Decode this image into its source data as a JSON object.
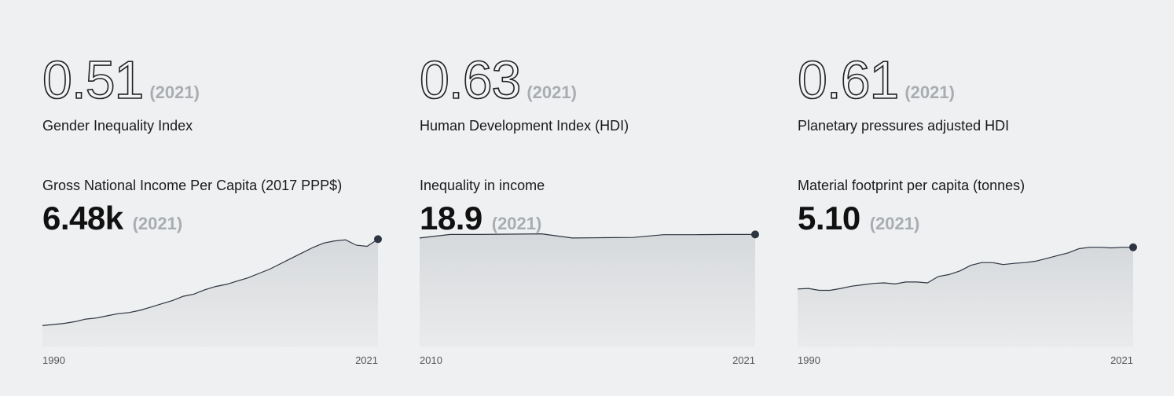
{
  "panels": [
    {
      "headline": {
        "value": "0.51",
        "year": "(2021)",
        "label": "Gender Inequality Index"
      },
      "metric": {
        "label": "Gross National Income Per Capita (2017 PPP$)",
        "value": "6.48k",
        "year": "(2021)"
      }
    },
    {
      "headline": {
        "value": "0.63",
        "year": "(2021)",
        "label": "Human Development Index (HDI)"
      },
      "metric": {
        "label": "Inequality in income",
        "value": "18.9",
        "year": "(2021)"
      }
    },
    {
      "headline": {
        "value": "0.61",
        "year": "(2021)",
        "label": "Planetary pressures adjusted HDI"
      },
      "metric": {
        "label": "Material footprint per capita (tonnes)",
        "value": "5.10",
        "year": "(2021)"
      }
    }
  ],
  "chart_data": [
    {
      "type": "area",
      "title": "Gross National Income Per Capita (2017 PPP$)",
      "x_tick_labels": [
        "1990",
        "2021"
      ],
      "x": [
        1990,
        1991,
        1992,
        1993,
        1994,
        1995,
        1996,
        1997,
        1998,
        1999,
        2000,
        2001,
        2002,
        2003,
        2004,
        2005,
        2006,
        2007,
        2008,
        2009,
        2010,
        2011,
        2012,
        2013,
        2014,
        2015,
        2016,
        2017,
        2018,
        2019,
        2020,
        2021
      ],
      "values": [
        2.5,
        2.55,
        2.6,
        2.68,
        2.8,
        2.85,
        2.95,
        3.05,
        3.1,
        3.2,
        3.35,
        3.5,
        3.65,
        3.85,
        3.95,
        4.15,
        4.3,
        4.4,
        4.55,
        4.7,
        4.9,
        5.1,
        5.35,
        5.6,
        5.85,
        6.1,
        6.3,
        6.4,
        6.45,
        6.2,
        6.15,
        6.48
      ],
      "ylim": [
        1.5,
        7.0
      ],
      "marker": "end-point",
      "color": "#2d3540"
    },
    {
      "type": "area",
      "title": "Inequality in income",
      "x_tick_labels": [
        "2010",
        "2021"
      ],
      "x": [
        2010,
        2011,
        2012,
        2013,
        2014,
        2015,
        2016,
        2017,
        2018,
        2019,
        2020,
        2021
      ],
      "values": [
        18.3,
        18.9,
        18.9,
        18.95,
        19.0,
        18.3,
        18.35,
        18.4,
        18.85,
        18.85,
        18.9,
        18.9
      ],
      "ylim": [
        0,
        20
      ],
      "marker": "end-point",
      "color": "#2d3540"
    },
    {
      "type": "area",
      "title": "Material footprint per capita (tonnes)",
      "x_tick_labels": [
        "1990",
        "2021"
      ],
      "x": [
        1990,
        1991,
        1992,
        1993,
        1994,
        1995,
        1996,
        1997,
        1998,
        1999,
        2000,
        2001,
        2002,
        2003,
        2004,
        2005,
        2006,
        2007,
        2008,
        2009,
        2010,
        2011,
        2012,
        2013,
        2014,
        2015,
        2016,
        2017,
        2018,
        2019,
        2020,
        2021
      ],
      "values": [
        3.6,
        3.62,
        3.55,
        3.55,
        3.62,
        3.7,
        3.75,
        3.8,
        3.82,
        3.78,
        3.85,
        3.85,
        3.82,
        4.05,
        4.12,
        4.25,
        4.45,
        4.55,
        4.55,
        4.48,
        4.52,
        4.55,
        4.6,
        4.7,
        4.8,
        4.9,
        5.05,
        5.1,
        5.1,
        5.08,
        5.1,
        5.1
      ],
      "ylim": [
        1.5,
        5.8
      ],
      "marker": "end-point",
      "color": "#2d3540"
    }
  ]
}
